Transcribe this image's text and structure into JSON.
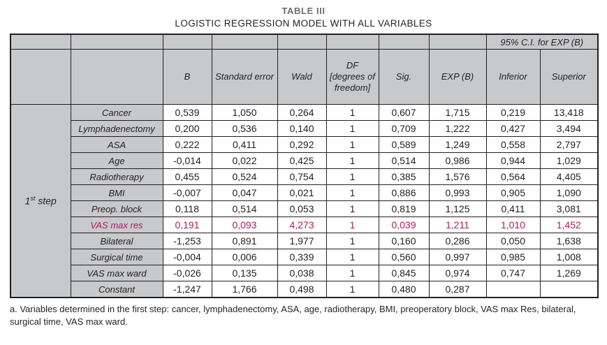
{
  "page": {
    "title": "TABLE III",
    "subtitle": "LOGISTIC REGRESSION MODEL WITH ALL VARIABLES",
    "footnote": "a. Variables determined in the first step: cancer, lymphadenectomy, ASA, age, radiotherapy, BMI, preoperatory block, VAS max Res, bilateral, surgical time, VAS max ward."
  },
  "table": {
    "ci_group_header": "95% C.I. for EXP (B)",
    "step": {
      "prefix": "1",
      "sup": "st",
      "suffix": " step"
    },
    "columns": [
      "B",
      "Standard error",
      "Wald",
      "DF [degrees of freedom]",
      "Sig.",
      "EXP (B)",
      "Inferior",
      "Superior"
    ],
    "highlight_color": "#b5185c",
    "rows": [
      {
        "label": "Cancer",
        "highlight": false,
        "values": [
          "0,539",
          "1,050",
          "0,264",
          "1",
          "0,607",
          "1,715",
          "0,219",
          "13,418"
        ]
      },
      {
        "label": "Lymphadenectomy",
        "highlight": false,
        "values": [
          "0,200",
          "0,536",
          "0,140",
          "1",
          "0,709",
          "1,222",
          "0,427",
          "3,494"
        ]
      },
      {
        "label": "ASA",
        "highlight": false,
        "values": [
          "0,222",
          "0,411",
          "0,292",
          "1",
          "0,589",
          "1,249",
          "0,558",
          "2,797"
        ]
      },
      {
        "label": "Age",
        "highlight": false,
        "values": [
          "-0,014",
          "0,022",
          "0,425",
          "1",
          "0,514",
          "0,986",
          "0,944",
          "1,029"
        ]
      },
      {
        "label": "Radiotherapy",
        "highlight": false,
        "values": [
          "0,455",
          "0,524",
          "0,754",
          "1",
          "0,385",
          "1,576",
          "0,564",
          "4,405"
        ]
      },
      {
        "label": "BMI",
        "highlight": false,
        "values": [
          "-0,007",
          "0,047",
          "0,021",
          "1",
          "0,886",
          "0,993",
          "0,905",
          "1,090"
        ]
      },
      {
        "label": "Preop. block",
        "highlight": false,
        "values": [
          "0,118",
          "0,514",
          "0,053",
          "1",
          "0,819",
          "1,125",
          "0,411",
          "3,081"
        ]
      },
      {
        "label": "VAS max res",
        "highlight": true,
        "values": [
          "0,191",
          "0,093",
          "4,273",
          "1",
          "0,039",
          "1,211",
          "1,010",
          "1,452"
        ]
      },
      {
        "label": "Bilateral",
        "highlight": false,
        "values": [
          "-1,253",
          "0,891",
          "1,977",
          "1",
          "0,160",
          "0,286",
          "0,050",
          "1,638"
        ]
      },
      {
        "label": "Surgical time",
        "highlight": false,
        "values": [
          "-0,004",
          "0,006",
          "0,339",
          "1",
          "0,560",
          "0,997",
          "0,985",
          "1,008"
        ]
      },
      {
        "label": "VAS max ward",
        "highlight": false,
        "values": [
          "-0,026",
          "0,135",
          "0,038",
          "1",
          "0,845",
          "0,974",
          "0,747",
          "1,269"
        ]
      },
      {
        "label": "Constant",
        "highlight": false,
        "values": [
          "-1,247",
          "1,766",
          "0,498",
          "1",
          "0,480",
          "0,287",
          "",
          ""
        ]
      }
    ]
  }
}
